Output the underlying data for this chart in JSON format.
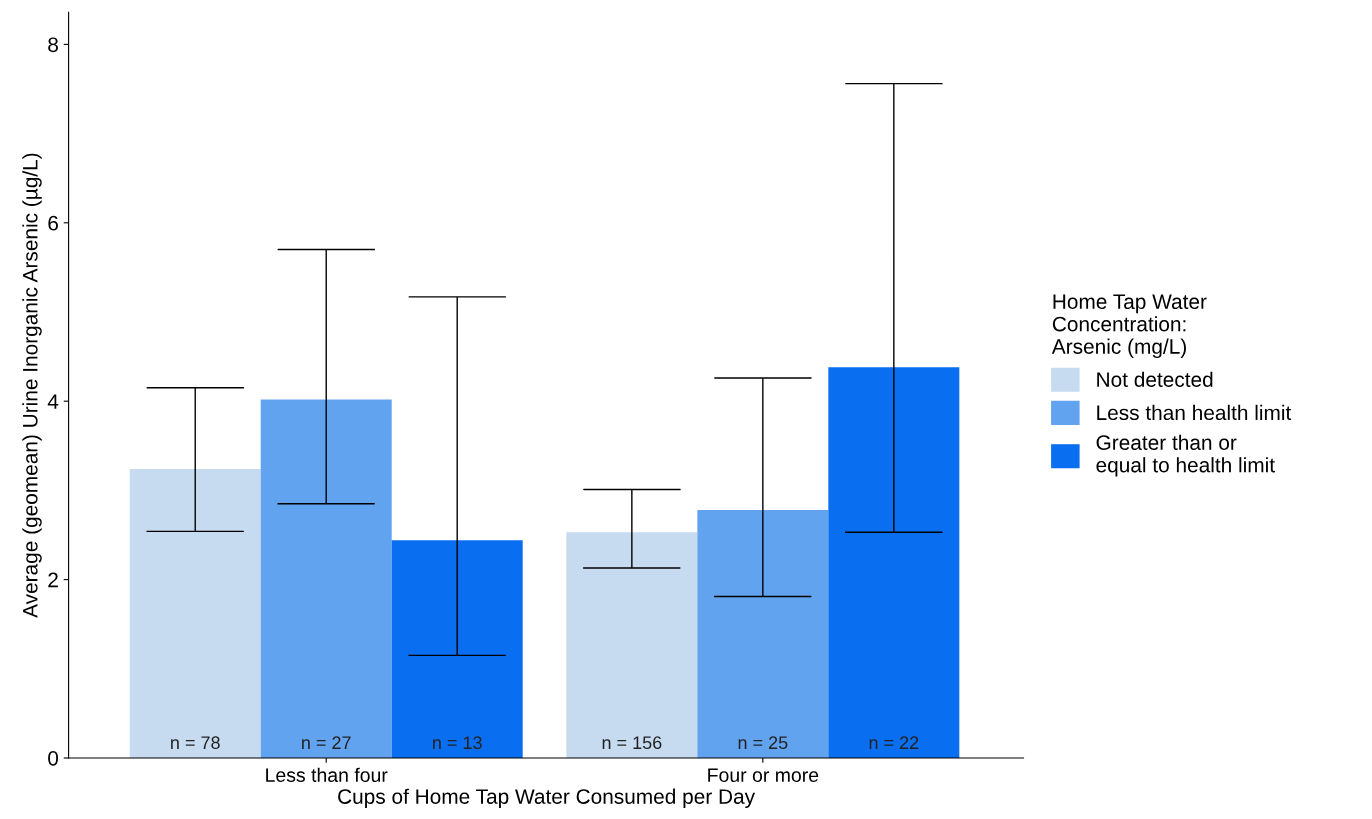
{
  "chart_data": {
    "type": "bar",
    "categories": [
      "Less than four",
      "Four or more"
    ],
    "xlabel": "Cups of Home Tap Water Consumed per Day",
    "ylabel": "Average (geomean) Urine Inorganic Arsenic (µg/L)",
    "legend_title": "Home Tap Water\nConcentration:\nArsenic (mg/L)",
    "series": [
      {
        "name": "Not detected",
        "color": "#c6dbf0",
        "values": [
          3.24,
          2.53
        ],
        "errors": [
          [
            2.54,
            4.15
          ],
          [
            2.13,
            3.01
          ]
        ]
      },
      {
        "name": "Less than health limit",
        "color": "#62a3f0",
        "values": [
          4.02,
          2.78
        ],
        "errors": [
          [
            2.85,
            5.7
          ],
          [
            1.81,
            4.26
          ]
        ]
      },
      {
        "name": "Greater than or\nequal to health limit",
        "color": "#0a6ef0",
        "values": [
          2.44,
          4.38
        ],
        "errors": [
          [
            1.15,
            5.17
          ],
          [
            2.53,
            7.56
          ]
        ]
      }
    ],
    "annotations": [
      "n = 78",
      "n = 27",
      "n = 13",
      "n = 156",
      "n = 25",
      "n = 22"
    ],
    "ylim": [
      0,
      8.36
    ],
    "yticks": [
      0,
      2,
      4,
      6,
      8
    ],
    "grid": false,
    "legend": "right"
  }
}
